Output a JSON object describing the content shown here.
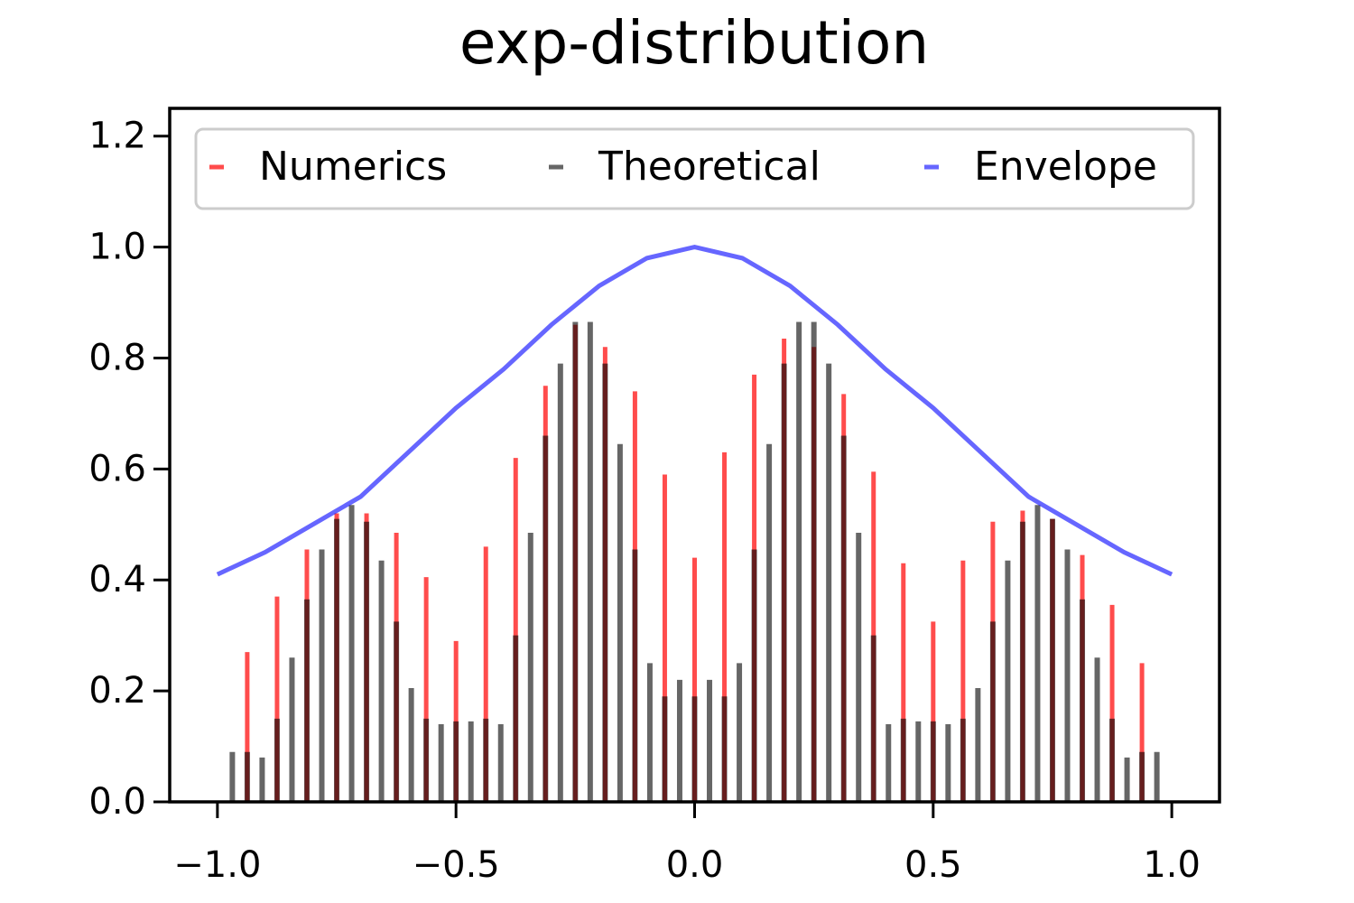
{
  "chart_data": {
    "type": "stem",
    "title": "exp-distribution",
    "xlim": [
      -1.1,
      1.1
    ],
    "ylim": [
      0,
      1.25
    ],
    "xticks": [
      {
        "value": -1,
        "label": "−1.0"
      },
      {
        "value": -0.5,
        "label": "−0.5"
      },
      {
        "value": 0,
        "label": "0.0"
      },
      {
        "value": 0.5,
        "label": "0.5"
      },
      {
        "value": 1,
        "label": "1.0"
      }
    ],
    "yticks": [
      {
        "value": 0,
        "label": "0.0"
      },
      {
        "value": 0.2,
        "label": "0.2"
      },
      {
        "value": 0.4,
        "label": "0.4"
      },
      {
        "value": 0.6,
        "label": "0.6"
      },
      {
        "value": 0.8,
        "label": "0.8"
      },
      {
        "value": 1,
        "label": "1.0"
      },
      {
        "value": 1.2,
        "label": "1.2"
      }
    ],
    "legend": "upper center",
    "series": [
      {
        "name": "Numerics",
        "kind": "stem",
        "color": "rgba(255,0,0,0.7)",
        "x": [
          -0.9375,
          -0.875,
          -0.8125,
          -0.75,
          -0.6875,
          -0.625,
          -0.5625,
          -0.5,
          -0.4375,
          -0.375,
          -0.3125,
          -0.25,
          -0.1875,
          -0.125,
          -0.0625,
          0,
          0.0625,
          0.125,
          0.1875,
          0.25,
          0.3125,
          0.375,
          0.4375,
          0.5,
          0.5625,
          0.625,
          0.6875,
          0.75,
          0.8125,
          0.875,
          0.9375
        ],
        "values": [
          0.27,
          0.37,
          0.455,
          0.52,
          0.52,
          0.485,
          0.405,
          0.29,
          0.46,
          0.62,
          0.75,
          0.86,
          0.82,
          0.74,
          0.59,
          0.44,
          0.63,
          0.77,
          0.835,
          0.82,
          0.735,
          0.595,
          0.43,
          0.325,
          0.435,
          0.505,
          0.525,
          0.51,
          0.445,
          0.355,
          0.25
        ]
      },
      {
        "name": "Theoretical",
        "kind": "stem",
        "color": "rgba(0,0,0,0.6)",
        "x": [
          -0.96875,
          -0.9375,
          -0.90625,
          -0.875,
          -0.84375,
          -0.8125,
          -0.78125,
          -0.75,
          -0.71875,
          -0.6875,
          -0.65625,
          -0.625,
          -0.59375,
          -0.5625,
          -0.53125,
          -0.5,
          -0.46875,
          -0.4375,
          -0.40625,
          -0.375,
          -0.34375,
          -0.3125,
          -0.28125,
          -0.25,
          -0.21875,
          -0.1875,
          -0.15625,
          -0.125,
          -0.09375,
          -0.0625,
          -0.03125,
          0,
          0.03125,
          0.0625,
          0.09375,
          0.125,
          0.15625,
          0.1875,
          0.21875,
          0.25,
          0.28125,
          0.3125,
          0.34375,
          0.375,
          0.40625,
          0.4375,
          0.46875,
          0.5,
          0.53125,
          0.5625,
          0.59375,
          0.625,
          0.65625,
          0.6875,
          0.71875,
          0.75,
          0.78125,
          0.8125,
          0.84375,
          0.875,
          0.90625,
          0.9375,
          0.96875
        ],
        "values": [
          0.09,
          0.09,
          0.08,
          0.15,
          0.26,
          0.365,
          0.455,
          0.51,
          0.535,
          0.505,
          0.435,
          0.325,
          0.205,
          0.15,
          0.14,
          0.145,
          0.145,
          0.15,
          0.14,
          0.3,
          0.485,
          0.66,
          0.79,
          0.865,
          0.865,
          0.79,
          0.645,
          0.455,
          0.25,
          0.19,
          0.22,
          0.19,
          0.22,
          0.19,
          0.25,
          0.455,
          0.645,
          0.79,
          0.865,
          0.865,
          0.79,
          0.66,
          0.485,
          0.3,
          0.14,
          0.15,
          0.145,
          0.145,
          0.14,
          0.15,
          0.205,
          0.325,
          0.435,
          0.505,
          0.535,
          0.51,
          0.455,
          0.365,
          0.26,
          0.15,
          0.08,
          0.09,
          0.09
        ]
      },
      {
        "name": "Envelope",
        "kind": "line",
        "color": "rgba(0,0,255,0.6)",
        "x": [
          -1,
          -0.9,
          -0.8,
          -0.7,
          -0.6,
          -0.5,
          -0.4,
          -0.3,
          -0.2,
          -0.1,
          0,
          0.1,
          0.2,
          0.3,
          0.4,
          0.5,
          0.6,
          0.7,
          0.8,
          0.9,
          1
        ],
        "values": [
          0.41,
          0.45,
          0.5,
          0.55,
          0.63,
          0.71,
          0.78,
          0.86,
          0.93,
          0.98,
          1.0,
          0.98,
          0.93,
          0.86,
          0.78,
          0.71,
          0.63,
          0.55,
          0.5,
          0.45,
          0.41
        ]
      }
    ]
  }
}
